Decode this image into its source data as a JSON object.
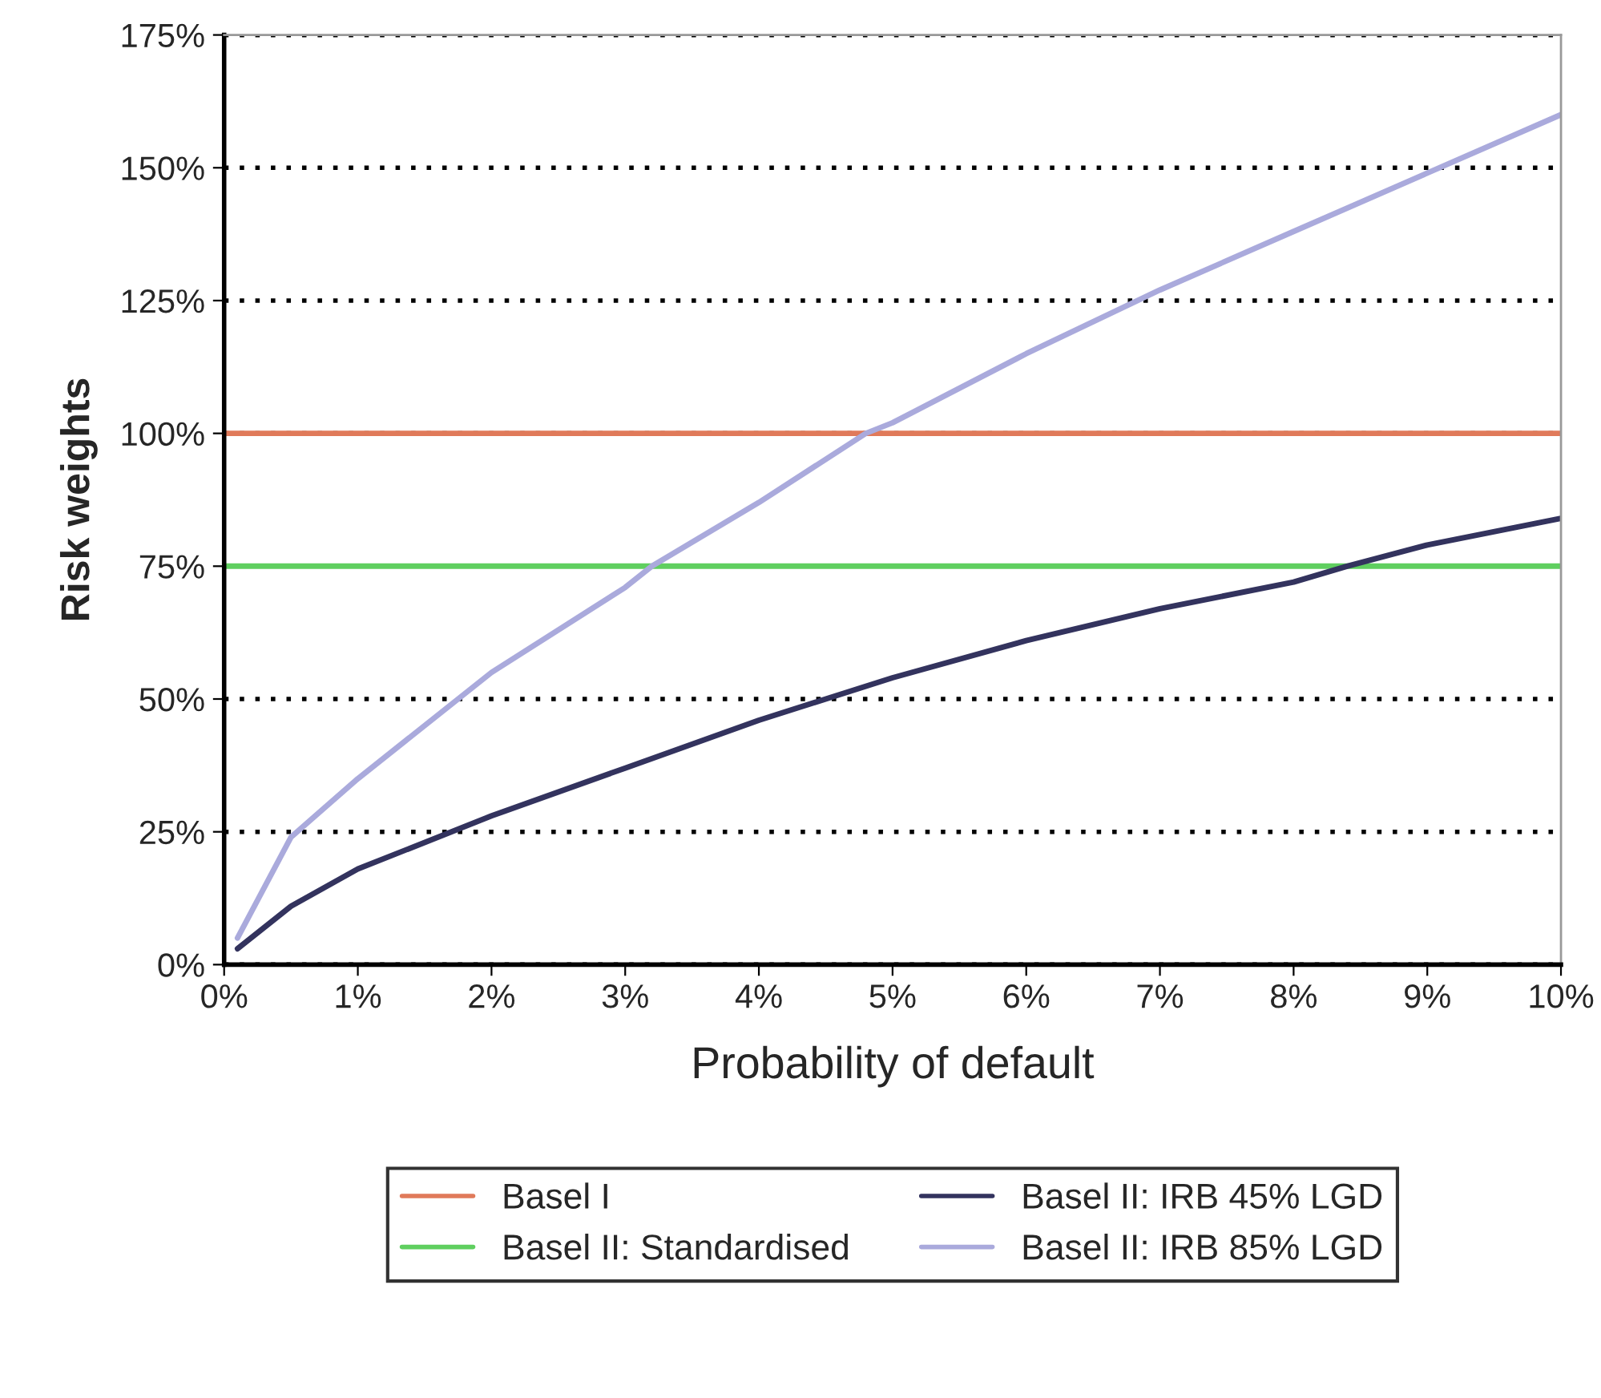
{
  "chart_data": {
    "type": "line",
    "xlabel": "Probability of default",
    "ylabel": "Risk weights",
    "xlim": [
      0,
      10
    ],
    "ylim": [
      0,
      175
    ],
    "xticks": [
      {
        "value": 0,
        "label": "0%"
      },
      {
        "value": 1,
        "label": "1%"
      },
      {
        "value": 2,
        "label": "2%"
      },
      {
        "value": 3,
        "label": "3%"
      },
      {
        "value": 4,
        "label": "4%"
      },
      {
        "value": 5,
        "label": "5%"
      },
      {
        "value": 6,
        "label": "6%"
      },
      {
        "value": 7,
        "label": "7%"
      },
      {
        "value": 8,
        "label": "8%"
      },
      {
        "value": 9,
        "label": "9%"
      },
      {
        "value": 10,
        "label": "10%"
      }
    ],
    "yticks": [
      {
        "value": 0,
        "label": "0%"
      },
      {
        "value": 25,
        "label": "25%"
      },
      {
        "value": 50,
        "label": "50%"
      },
      {
        "value": 75,
        "label": "75%"
      },
      {
        "value": 100,
        "label": "100%"
      },
      {
        "value": 125,
        "label": "125%"
      },
      {
        "value": 150,
        "label": "150%"
      },
      {
        "value": 175,
        "label": "175%"
      }
    ],
    "grid": "y",
    "legend": "bottom",
    "marker": "none",
    "line_style": "solid",
    "series": [
      {
        "name": "Basel I",
        "color": "#e07a5a",
        "x": [
          0,
          10
        ],
        "values": [
          100,
          100
        ]
      },
      {
        "name": "Basel II: Standardised",
        "color": "#5fcf5f",
        "x": [
          0,
          10
        ],
        "values": [
          75,
          75
        ]
      },
      {
        "name": "Basel II: IRB 45% LGD",
        "color": "#33335e",
        "x": [
          0.1,
          0.5,
          1,
          2,
          3,
          4,
          5,
          6,
          7,
          8,
          8.4,
          9,
          10
        ],
        "values": [
          3,
          11,
          18,
          28,
          37,
          46,
          54,
          61,
          67,
          72,
          75,
          79,
          84
        ]
      },
      {
        "name": "Basel II: IRB 85% LGD",
        "color": "#aaaadc",
        "x": [
          0.1,
          0.5,
          1,
          2,
          3,
          3.2,
          4,
          4.8,
          5,
          6,
          7,
          8,
          9,
          10
        ],
        "values": [
          5,
          24,
          35,
          55,
          71,
          75,
          87,
          100,
          102,
          115,
          127,
          138,
          149,
          160
        ]
      }
    ]
  }
}
